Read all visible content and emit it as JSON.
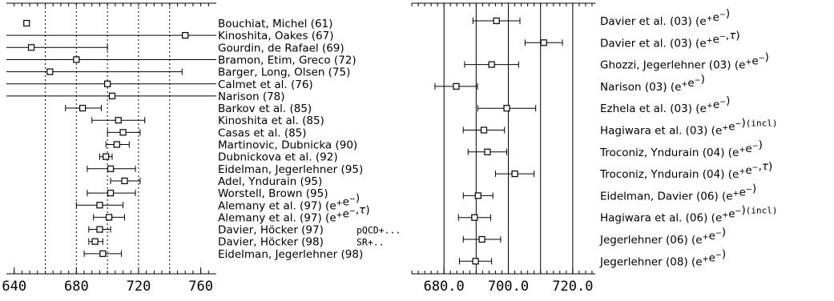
{
  "chart_data": [
    {
      "type": "scatter",
      "title": "",
      "xlabel": "",
      "ylabel": "",
      "xlim": [
        635,
        770
      ],
      "xticks": [
        "640",
        "680",
        "720",
        "760"
      ],
      "grid": "dotted vertical lines at 660, 680, 700, 720, 740",
      "entries": [
        {
          "label": "Bouchiat, Michel (61)",
          "value": 648,
          "err_lo": 648,
          "err_hi": 648,
          "note": ""
        },
        {
          "label": "Kinoshita, Oakes (67)",
          "value": 750,
          "err_lo": 635,
          "err_hi": 770,
          "note": ""
        },
        {
          "label": "Gourdin, de Rafael (69)",
          "value": 651,
          "err_lo": 635,
          "err_hi": 700,
          "note": ""
        },
        {
          "label": "Bramon, Etim, Greco (72)",
          "value": 680,
          "err_lo": 635,
          "err_hi": 770,
          "note": ""
        },
        {
          "label": "Barger, Long, Olsen (75)",
          "value": 663,
          "err_lo": 635,
          "err_hi": 748,
          "note": ""
        },
        {
          "label": "Calmet et al. (76)",
          "value": 700,
          "err_lo": 635,
          "err_hi": 770,
          "note": ""
        },
        {
          "label": "Narison (78)",
          "value": 703,
          "err_lo": 635,
          "err_hi": 770,
          "note": ""
        },
        {
          "label": "Barkov et al. (85)",
          "value": 684,
          "err_lo": 673,
          "err_hi": 696,
          "note": ""
        },
        {
          "label": "Kinoshita et al. (85)",
          "value": 707,
          "err_lo": 690,
          "err_hi": 724,
          "note": ""
        },
        {
          "label": "Casas et al. (85)",
          "value": 710,
          "err_lo": 700,
          "err_hi": 721,
          "note": ""
        },
        {
          "label": "Martinovic, Dubnicka (90)",
          "value": 706,
          "err_lo": 699,
          "err_hi": 714,
          "note": ""
        },
        {
          "label": "Dubnickova et al. (92)",
          "value": 699,
          "err_lo": 695,
          "err_hi": 703,
          "note": ""
        },
        {
          "label": "Eidelman, Jegerlehner (95)",
          "value": 702,
          "err_lo": 687,
          "err_hi": 718,
          "note": ""
        },
        {
          "label": "Adel, Yndurain (95)",
          "value": 711,
          "err_lo": 702,
          "err_hi": 721,
          "note": ""
        },
        {
          "label": "Worstell, Brown (95)",
          "value": 702,
          "err_lo": 687,
          "err_hi": 718,
          "note": ""
        },
        {
          "label": "Alemany et al. (97) (e⁺e⁻)",
          "value": 695,
          "err_lo": 680,
          "err_hi": 710,
          "note": ""
        },
        {
          "label": "Alemany et al. (97) (e⁺e⁻,τ)",
          "value": 701,
          "err_lo": 691,
          "err_hi": 711,
          "note": ""
        },
        {
          "label": "Davier, Höcker (97)",
          "value": 695,
          "err_lo": 688,
          "err_hi": 702,
          "note": "pQCD+..."
        },
        {
          "label": "Davier, Höcker (98)",
          "value": 692,
          "err_lo": 688,
          "err_hi": 697,
          "note": "SR+.."
        },
        {
          "label": "Eidelman, Jegerlehner (98)",
          "value": 697,
          "err_lo": 685,
          "err_hi": 709,
          "note": ""
        }
      ]
    },
    {
      "type": "scatter",
      "title": "",
      "xlabel": "",
      "ylabel": "",
      "xlim": [
        670.0,
        727.0
      ],
      "xticks": [
        "680.0",
        "700.0",
        "720.0"
      ],
      "grid": "solid vertical lines at 680, 690, 700, 710, 720",
      "entries": [
        {
          "label": "Davier et al. (03) (e⁺e⁻)",
          "value": 696.3,
          "err_lo": 689.0,
          "err_hi": 703.6
        },
        {
          "label": "Davier et al. (03) (e⁺e⁻,τ)",
          "value": 711.0,
          "err_lo": 705.2,
          "err_hi": 716.8
        },
        {
          "label": "Ghozzi, Jegerlehner (03) (e⁺e⁻)",
          "value": 694.8,
          "err_lo": 686.4,
          "err_hi": 703.2
        },
        {
          "label": "Narison (03) (e⁺e⁻)",
          "value": 683.8,
          "err_lo": 677.2,
          "err_hi": 690.4
        },
        {
          "label": "Ezhela et al. (03) (e⁺e⁻)",
          "value": 699.5,
          "err_lo": 690.5,
          "err_hi": 708.5
        },
        {
          "label": "Hagiwara et al. (03) (e⁺e⁻)(incl)",
          "value": 692.4,
          "err_lo": 686.0,
          "err_hi": 698.8
        },
        {
          "label": "Troconiz, Yndurain (04) (e⁺e⁻)",
          "value": 693.5,
          "err_lo": 687.5,
          "err_hi": 699.5
        },
        {
          "label": "Troconiz, Yndurain (04) (e⁺e⁻,τ)",
          "value": 702.0,
          "err_lo": 696.0,
          "err_hi": 708.0
        },
        {
          "label": "Eidelman, Davier (06) (e⁺e⁻)",
          "value": 690.6,
          "err_lo": 686.0,
          "err_hi": 695.2
        },
        {
          "label": "Hagiwara et al. (06) (e⁺e⁻)(incl)",
          "value": 689.5,
          "err_lo": 684.5,
          "err_hi": 694.5
        },
        {
          "label": "Jegerlehner (06) (e⁺e⁻)",
          "value": 691.8,
          "err_lo": 686.0,
          "err_hi": 697.6
        },
        {
          "label": "Jegerlehner (08) (e⁺e⁻)",
          "value": 689.8,
          "err_lo": 684.8,
          "err_hi": 694.8
        }
      ]
    }
  ]
}
